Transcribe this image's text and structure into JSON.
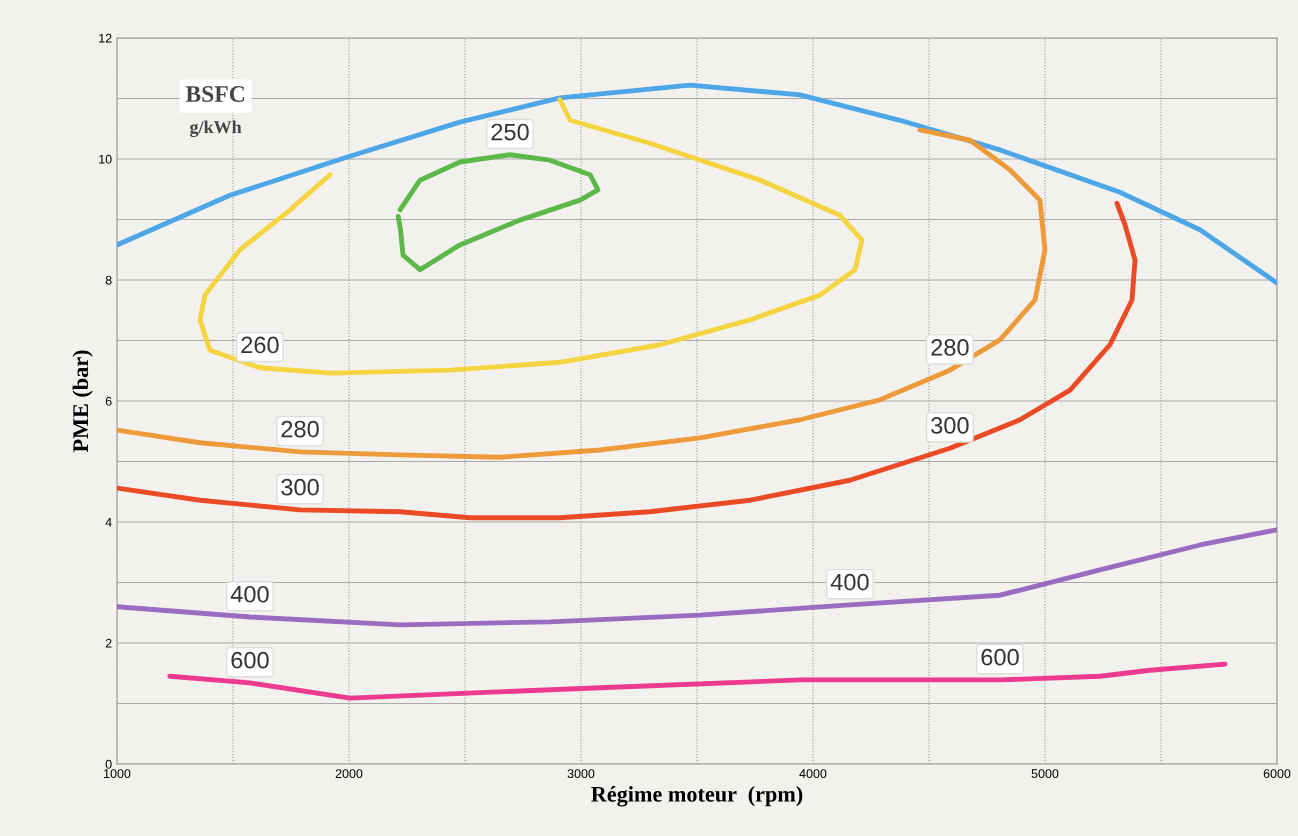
{
  "chart_data": {
    "type": "line",
    "xlabel": "Régime moteur  (rpm)",
    "ylabel": "PME (bar)",
    "xlim": [
      1000,
      6000
    ],
    "ylim": [
      0,
      12
    ],
    "xticks": [
      1000,
      {
        "value": 1500,
        "label": null
      },
      2000,
      {
        "value": 2500,
        "label": null
      },
      3000,
      {
        "value": 3500,
        "label": null
      },
      4000,
      {
        "value": 4500,
        "label": null
      },
      5000,
      {
        "value": 5500,
        "label": null
      },
      6000
    ],
    "yticks": [
      0,
      {
        "value": 1,
        "label": null
      },
      2,
      {
        "value": 3,
        "label": null
      },
      4,
      {
        "value": 5,
        "label": null
      },
      6,
      {
        "value": 7,
        "label": null
      },
      8,
      {
        "value": 9,
        "label": null
      },
      10,
      {
        "value": 11,
        "label": null
      },
      12
    ],
    "grid": true,
    "marker": "none",
    "line_style": "solid",
    "series": [
      {
        "color": "#4da6e8",
        "x": [
          1000,
          1487,
          1983,
          2478,
          2909,
          3470,
          3944,
          4375,
          4806,
          5323,
          5668,
          6000
        ],
        "values": [
          8.58,
          9.4,
          10.02,
          10.61,
          11.01,
          11.22,
          11.06,
          10.64,
          10.15,
          9.45,
          8.83,
          7.95
        ]
      },
      {
        "color": "#f5d442",
        "x": [
          2909,
          2953,
          3297,
          3772,
          4116,
          4211,
          4181,
          4030,
          3728,
          3341,
          2909,
          2435,
          1918,
          1616,
          1400,
          1358,
          1379,
          1530,
          1746,
          1918
        ],
        "values": [
          10.98,
          10.64,
          10.26,
          9.65,
          9.07,
          8.66,
          8.17,
          7.75,
          7.34,
          6.93,
          6.64,
          6.51,
          6.46,
          6.55,
          6.84,
          7.34,
          7.75,
          8.5,
          9.16,
          9.74
        ]
      },
      {
        "color": "#5cb848",
        "x": [
          2220,
          2306,
          2478,
          2694,
          2866,
          3039,
          3073,
          2996,
          2737,
          2478,
          2306,
          2233,
          2222,
          2212
        ],
        "values": [
          9.16,
          9.65,
          9.95,
          10.07,
          9.98,
          9.74,
          9.49,
          9.32,
          8.99,
          8.58,
          8.17,
          8.41,
          8.83,
          9.05
        ]
      },
      {
        "color": "#ec9a3a",
        "x": [
          1000,
          1358,
          1789,
          2220,
          2651,
          3082,
          3513,
          3944,
          4289,
          4590,
          4806,
          4957,
          5000,
          4978,
          4849,
          4677,
          4461
        ],
        "values": [
          5.52,
          5.31,
          5.16,
          5.11,
          5.07,
          5.19,
          5.39,
          5.69,
          6.02,
          6.51,
          7.01,
          7.67,
          8.5,
          9.32,
          9.82,
          10.31,
          10.48
        ]
      },
      {
        "color": "#ec4a25",
        "x": [
          1000,
          1358,
          1789,
          2220,
          2522,
          2909,
          3297,
          3728,
          4159,
          4590,
          4892,
          5108,
          5280,
          5375,
          5388,
          5345,
          5310
        ],
        "values": [
          4.56,
          4.36,
          4.2,
          4.17,
          4.07,
          4.07,
          4.17,
          4.36,
          4.69,
          5.22,
          5.69,
          6.18,
          6.93,
          7.67,
          8.33,
          8.91,
          9.27
        ]
      },
      {
        "color": "#9a6cc0",
        "x": [
          1000,
          1573,
          2220,
          2866,
          3513,
          4159,
          4806,
          5237,
          5668,
          6000
        ],
        "values": [
          2.6,
          2.43,
          2.3,
          2.35,
          2.46,
          2.63,
          2.79,
          3.21,
          3.62,
          3.87
        ]
      },
      {
        "color": "#ec3a8e",
        "x": [
          1228,
          1573,
          2004,
          2435,
          3082,
          3944,
          4806,
          5237,
          5453,
          5776
        ],
        "values": [
          1.45,
          1.34,
          1.09,
          1.16,
          1.26,
          1.39,
          1.39,
          1.45,
          1.55,
          1.65
        ]
      }
    ],
    "annotations": [
      "BSFC",
      "g/kWh",
      {
        "text": "250",
        "x": 2694,
        "y": 10.07
      },
      {
        "text": "260",
        "x": 1616,
        "y": 6.55
      },
      {
        "text": "280",
        "x": 1789,
        "y": 5.16
      },
      {
        "text": "300",
        "x": 1789,
        "y": 4.2
      },
      {
        "text": "400",
        "x": 1573,
        "y": 2.43
      },
      {
        "text": "600",
        "x": 1573,
        "y": 1.34
      },
      {
        "text": "280",
        "x": 4590,
        "y": 6.51
      },
      {
        "text": "300",
        "x": 4590,
        "y": 5.22
      },
      {
        "text": "400",
        "x": 4159,
        "y": 2.63
      },
      {
        "text": "600",
        "x": 4806,
        "y": 1.39
      }
    ]
  }
}
